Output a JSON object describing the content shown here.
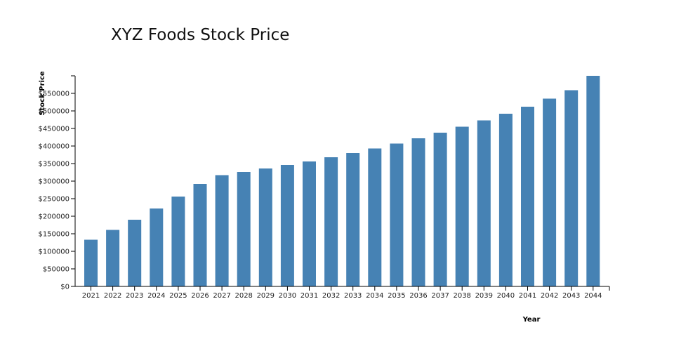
{
  "chart_data": {
    "type": "bar",
    "title": "XYZ Foods Stock Price",
    "xlabel": "Year",
    "ylabel": "Stock Price",
    "categories": [
      "2021",
      "2022",
      "2023",
      "2024",
      "2025",
      "2026",
      "2027",
      "2028",
      "2029",
      "2030",
      "2031",
      "2032",
      "2033",
      "2034",
      "2035",
      "2036",
      "2037",
      "2038",
      "2039",
      "2040",
      "2041",
      "2042",
      "2043",
      "2044"
    ],
    "series": [
      {
        "values": [
          133000,
          161000,
          190000,
          222000,
          256000,
          292000,
          317000,
          326000,
          336000,
          346000,
          356000,
          368000,
          380000,
          393000,
          407000,
          422000,
          438000,
          455000,
          473000,
          492000,
          512000,
          535000,
          559000,
          600000
        ],
        "color": "#4682b4"
      }
    ],
    "yticks": [
      "$0",
      "$50000",
      "$100000",
      "$150000",
      "$200000",
      "$250000",
      "$300000",
      "$350000",
      "$400000",
      "$450000",
      "$500000",
      "$550000"
    ],
    "ylim": [
      0,
      600000
    ],
    "grid": false,
    "legend": "none"
  }
}
